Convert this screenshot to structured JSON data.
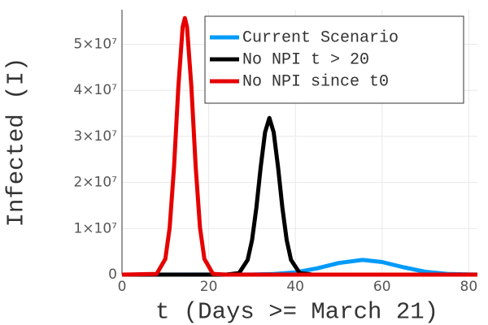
{
  "chart_data": {
    "type": "line",
    "xlabel": "t (Days >= March 21)",
    "ylabel": "Infected (I)",
    "xlim": [
      0,
      82
    ],
    "ylim": [
      0,
      57500000
    ],
    "xticks": [
      0,
      20,
      40,
      60,
      80
    ],
    "yticks": [
      0,
      {
        "value": 10000000,
        "label": "1×10⁷"
      },
      {
        "value": 20000000,
        "label": "2×10⁷"
      },
      {
        "value": 30000000,
        "label": "3×10⁷"
      },
      {
        "value": 40000000,
        "label": "4×10⁷"
      },
      {
        "value": 50000000,
        "label": "5×10⁷"
      }
    ],
    "grid": true,
    "legend": "top-right",
    "series": [
      {
        "name": "Current Scenario",
        "color": "#009af9",
        "x": [
          0,
          25,
          30,
          35,
          40,
          45,
          50,
          55.5,
          60,
          65,
          70,
          75,
          80,
          82
        ],
        "values": [
          0,
          20000,
          20000,
          120000,
          490000,
          1350000,
          2530000,
          3200000,
          2730000,
          1580000,
          620000,
          160000,
          30000,
          10000
        ]
      },
      {
        "name": "No NPI t > 20",
        "color": "#000000",
        "x": [
          0,
          24,
          27,
          29,
          30,
          31,
          32,
          33,
          34,
          35,
          36,
          37,
          38,
          39,
          41,
          44,
          82
        ],
        "values": [
          0,
          0,
          330000,
          3200000,
          7500000,
          14500000,
          23300000,
          30900000,
          34000000,
          30900000,
          23300000,
          14500000,
          7500000,
          3200000,
          330000,
          0,
          0
        ]
      },
      {
        "name": "No NPI since t0",
        "color": "#e60000",
        "x": [
          0,
          8,
          10,
          11,
          12,
          13,
          14,
          14.5,
          15,
          16,
          17,
          18,
          19,
          21,
          24,
          82
        ],
        "values": [
          0,
          160000,
          3400000,
          10200000,
          23400000,
          40800000,
          53800000,
          55700000,
          53800000,
          40800000,
          23400000,
          10200000,
          3400000,
          160000,
          0,
          0
        ]
      }
    ]
  }
}
